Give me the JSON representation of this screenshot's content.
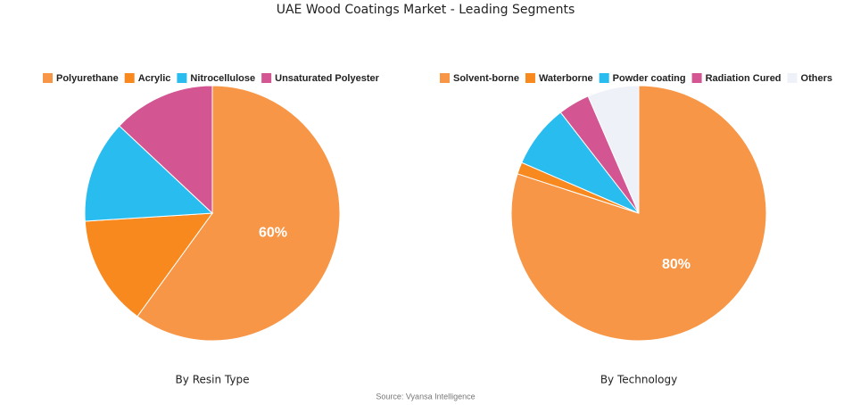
{
  "title": "UAE Wood Coatings Market - Leading Segments",
  "source": "Source: Vyansa Intelligence",
  "chart_data": [
    {
      "type": "pie",
      "subtitle": "By Resin Type",
      "categories": [
        "Polyurethane",
        "Acrylic",
        "Nitrocellulose",
        "Unsaturated Polyester"
      ],
      "values": [
        60,
        14,
        13,
        13
      ],
      "value_labels": [
        "60%",
        null,
        null,
        null
      ],
      "colors": [
        "#f79646",
        "#f7891f",
        "#29bcef",
        "#d35592"
      ],
      "legend": "top"
    },
    {
      "type": "pie",
      "subtitle": "By Technology",
      "categories": [
        "Solvent-borne",
        "Waterborne",
        "Powder coating",
        "Radiation Cured",
        "Others"
      ],
      "values": [
        80,
        1.5,
        8,
        4,
        6.5
      ],
      "value_labels": [
        "80%",
        null,
        null,
        null,
        null
      ],
      "colors": [
        "#f79646",
        "#f7891f",
        "#29bcef",
        "#d35592",
        "#eef2f8"
      ],
      "legend": "top"
    }
  ]
}
